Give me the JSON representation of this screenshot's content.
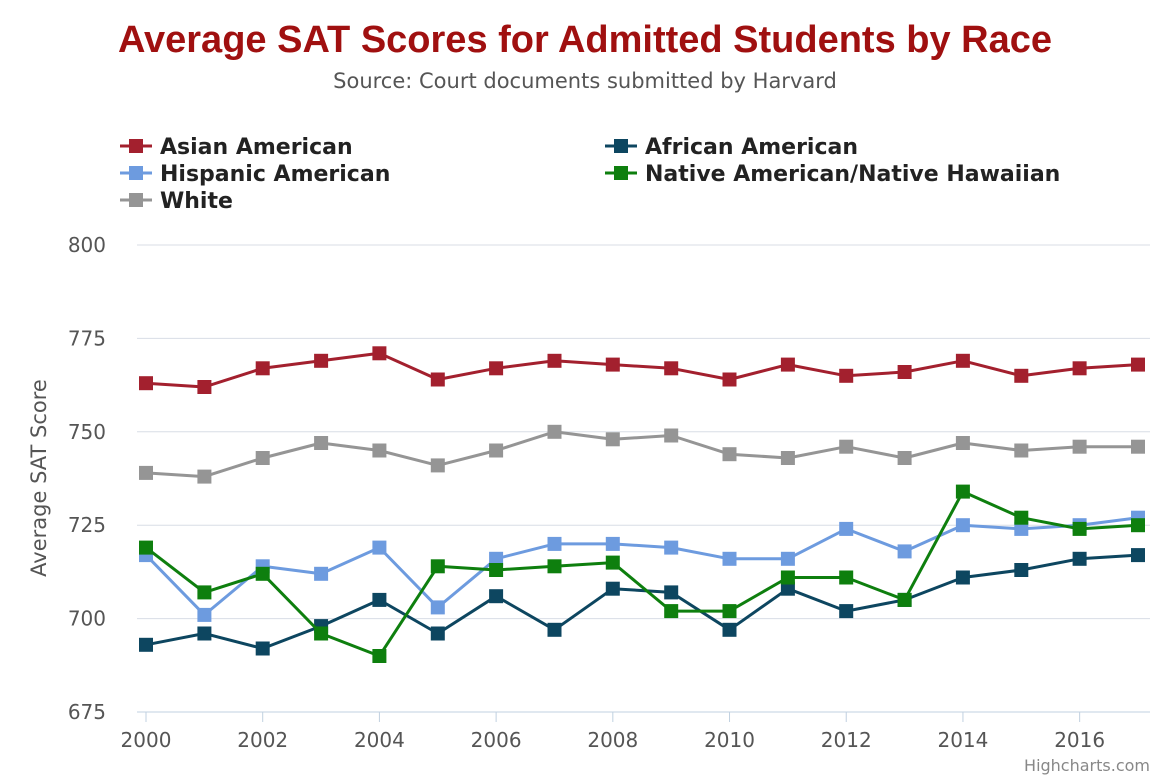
{
  "chart_data": {
    "type": "line",
    "title": "Average SAT Scores for Admitted Students by Race",
    "subtitle": "Source: Court documents submitted by Harvard",
    "ylabel": "Average SAT Score",
    "xlabel": "",
    "ylim": [
      675,
      800
    ],
    "xlim": [
      2000,
      2017
    ],
    "yticks": [
      675,
      700,
      725,
      750,
      775,
      800
    ],
    "xticks": [
      2000,
      2002,
      2004,
      2006,
      2008,
      2010,
      2012,
      2014,
      2016
    ],
    "grid": true,
    "legend_position": "top-left",
    "credit": "Highcharts.com",
    "x": [
      2000,
      2001,
      2002,
      2003,
      2004,
      2005,
      2006,
      2007,
      2008,
      2009,
      2010,
      2011,
      2012,
      2013,
      2014,
      2015,
      2016,
      2017
    ],
    "series": [
      {
        "name": "Asian American",
        "color": "#a3202e",
        "values": [
          763,
          762,
          767,
          769,
          771,
          764,
          767,
          769,
          768,
          767,
          764,
          768,
          765,
          766,
          769,
          765,
          767,
          768
        ]
      },
      {
        "name": "African American",
        "color": "#0d4660",
        "values": [
          693,
          696,
          692,
          698,
          705,
          696,
          706,
          697,
          708,
          707,
          697,
          708,
          702,
          705,
          711,
          713,
          716,
          717
        ]
      },
      {
        "name": "Hispanic American",
        "color": "#6d9bdf",
        "values": [
          717,
          701,
          714,
          712,
          719,
          703,
          716,
          720,
          720,
          719,
          716,
          716,
          724,
          718,
          725,
          724,
          725,
          727
        ]
      },
      {
        "name": "Native American/Native Hawaiian",
        "color": "#0e7f0e",
        "values": [
          719,
          707,
          712,
          696,
          690,
          714,
          713,
          714,
          715,
          702,
          702,
          711,
          711,
          705,
          734,
          727,
          724,
          725
        ]
      },
      {
        "name": "White",
        "color": "#959595",
        "values": [
          739,
          738,
          743,
          747,
          745,
          741,
          745,
          750,
          748,
          749,
          744,
          743,
          746,
          743,
          747,
          745,
          746,
          746
        ]
      }
    ]
  }
}
